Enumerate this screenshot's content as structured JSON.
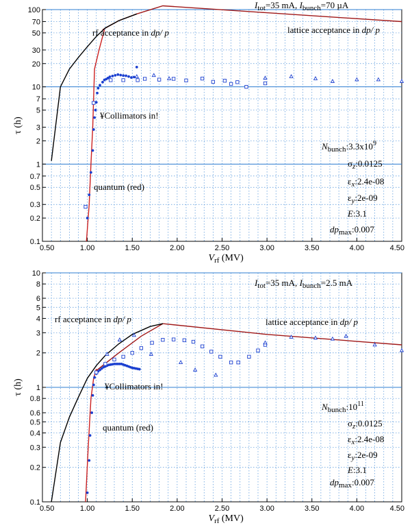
{
  "chart_data": [
    {
      "type": "scatter",
      "xlim": [
        0.5,
        4.5
      ],
      "ylim": [
        0.1,
        100
      ],
      "y_scale": "log",
      "x_ticks": [
        "0.50",
        "1.00",
        "1.50",
        "2.00",
        "2.50",
        "3.00",
        "3.50",
        "4.00",
        "4.50"
      ],
      "y_ticks": [
        {
          "v": 100,
          "l": "100"
        },
        {
          "v": 70,
          "l": "70"
        },
        {
          "v": 50,
          "l": "50"
        },
        {
          "v": 30,
          "l": "30"
        },
        {
          "v": 20,
          "l": "20"
        },
        {
          "v": 10,
          "l": "10"
        },
        {
          "v": 7,
          "l": "7"
        },
        {
          "v": 5,
          "l": "5"
        },
        {
          "v": 3,
          "l": "3"
        },
        {
          "v": 2,
          "l": "2"
        },
        {
          "v": 1,
          "l": "1"
        },
        {
          "v": 0.7,
          "l": "0.7"
        },
        {
          "v": 0.5,
          "l": "0.5"
        },
        {
          "v": 0.3,
          "l": "0.3"
        },
        {
          "v": 0.2,
          "l": "0.2"
        },
        {
          "v": 0.1,
          "l": "0.1"
        }
      ],
      "hlines": [
        100,
        10,
        1
      ],
      "grid": true,
      "ylabel": "τ (h)",
      "xlabel_main": "V",
      "xlabel_sub": "rf",
      "xlabel_unit": " (MV)",
      "title_parts": {
        "a": "I",
        "b": "tot",
        "c": "=35 mA, ",
        "d": "I",
        "e": "bunch",
        "f": "=70 µA"
      },
      "annotations": {
        "rf_acceptance": "rf acceptance in ",
        "rf_acceptance_it": "dp/ p",
        "lattice_acceptance": "lattice acceptance in ",
        "lattice_acceptance_it": "dp/ p",
        "collimators": "¥Collimators in!",
        "quantum": "quantum (red)"
      },
      "params": {
        "n_main": "N",
        "n_sub": "bunch",
        "n_val": ":3.3x10",
        "n_exp": "9",
        "sz_main": "σ",
        "sz_sub": "z",
        "sz_val": ":0.0125",
        "ex_main": "ε",
        "ex_sub": "x",
        "ex_val": ":2.4e-08",
        "ey_main": "ε",
        "ey_sub": "y",
        "ey_val": ":2e-09",
        "e_main": "E",
        "e_val": ":3.1",
        "dp_main": "dp",
        "dp_sub": "max",
        "dp_val": ":0.007"
      },
      "series": [
        {
          "name": "lattice acceptance in dp/p",
          "kind": "line",
          "color": "#a01818",
          "points": [
            [
              1.17,
              55
            ],
            [
              1.35,
              72
            ],
            [
              1.55,
              88
            ],
            [
              1.84,
              112
            ],
            [
              3.0,
              91
            ],
            [
              4.5,
              70
            ]
          ]
        },
        {
          "name": "rf acceptance in dp/p",
          "kind": "line",
          "color": "#000000",
          "points": [
            [
              0.6,
              1.1
            ],
            [
              0.7,
              10
            ],
            [
              0.8,
              17
            ],
            [
              0.9,
              24
            ],
            [
              1.0,
              33
            ],
            [
              1.1,
              45
            ],
            [
              1.2,
              58
            ],
            [
              1.35,
              72
            ],
            [
              1.55,
              88
            ]
          ]
        },
        {
          "name": "quantum (red)",
          "kind": "line",
          "color": "#cc2020",
          "points": [
            [
              0.99,
              0.1
            ],
            [
              1.02,
              0.3
            ],
            [
              1.04,
              1
            ],
            [
              1.06,
              3
            ],
            [
              1.08,
              17
            ],
            [
              1.13,
              30
            ],
            [
              1.19,
              55
            ]
          ]
        },
        {
          "name": "filled circles",
          "kind": "dot",
          "color": "#1a3fd0",
          "points": [
            [
              1.0,
              0.2
            ],
            [
              1.02,
              0.4
            ],
            [
              1.04,
              0.78
            ],
            [
              1.06,
              1.5
            ],
            [
              1.07,
              2.8
            ],
            [
              1.08,
              4.0
            ],
            [
              1.09,
              5.0
            ],
            [
              1.1,
              6.3
            ],
            [
              1.11,
              8.3
            ],
            [
              1.12,
              9.6
            ],
            [
              1.14,
              10.5
            ],
            [
              1.17,
              11.5
            ],
            [
              1.19,
              12.3
            ],
            [
              1.21,
              12.6
            ],
            [
              1.23,
              13.0
            ],
            [
              1.25,
              13.5
            ],
            [
              1.28,
              13.8
            ],
            [
              1.31,
              14.1
            ],
            [
              1.34,
              14.4
            ],
            [
              1.37,
              14.2
            ],
            [
              1.4,
              14.0
            ],
            [
              1.43,
              13.9
            ],
            [
              1.46,
              13.6
            ],
            [
              1.49,
              13.2
            ],
            [
              1.52,
              13.4
            ],
            [
              1.55,
              18
            ]
          ]
        },
        {
          "name": "open squares",
          "kind": "square",
          "color": "#1a3fd0",
          "points": [
            [
              0.98,
              0.28
            ],
            [
              1.07,
              6.2
            ],
            [
              1.26,
              12.2
            ],
            [
              1.4,
              12.2
            ],
            [
              1.56,
              12.2
            ],
            [
              1.64,
              12.7
            ],
            [
              1.8,
              12.4
            ],
            [
              1.96,
              12.7
            ],
            [
              2.1,
              12.1
            ],
            [
              2.28,
              12.8
            ],
            [
              2.4,
              11.6
            ],
            [
              2.53,
              12.0
            ],
            [
              2.6,
              10.9
            ],
            [
              2.67,
              11.5
            ],
            [
              2.77,
              10.0
            ],
            [
              2.98,
              11.1
            ]
          ]
        },
        {
          "name": "open triangles",
          "kind": "triangle",
          "color": "#1a3fd0",
          "points": [
            [
              1.55,
              13.6
            ],
            [
              1.74,
              14.1
            ],
            [
              1.91,
              12.8
            ],
            [
              2.98,
              13.0
            ],
            [
              3.27,
              13.6
            ],
            [
              3.54,
              12.8
            ],
            [
              3.73,
              11.8
            ],
            [
              4.0,
              12.4
            ],
            [
              4.24,
              12.4
            ],
            [
              4.5,
              11.8
            ]
          ]
        }
      ]
    },
    {
      "type": "scatter",
      "xlim": [
        0.5,
        4.5
      ],
      "ylim": [
        0.1,
        10
      ],
      "y_scale": "log",
      "x_ticks": [
        "0.50",
        "1.00",
        "1.50",
        "2.00",
        "2.50",
        "3.00",
        "3.50",
        "4.00",
        "4.50"
      ],
      "y_ticks": [
        {
          "v": 10,
          "l": "10"
        },
        {
          "v": 8,
          "l": "8"
        },
        {
          "v": 6,
          "l": "6"
        },
        {
          "v": 5,
          "l": "5"
        },
        {
          "v": 4,
          "l": "4"
        },
        {
          "v": 3,
          "l": "3"
        },
        {
          "v": 2,
          "l": "2"
        },
        {
          "v": 1,
          "l": "1"
        },
        {
          "v": 0.8,
          "l": "0.8"
        },
        {
          "v": 0.6,
          "l": "0.6"
        },
        {
          "v": 0.5,
          "l": "0.5"
        },
        {
          "v": 0.4,
          "l": "0.4"
        },
        {
          "v": 0.3,
          "l": "0.3"
        },
        {
          "v": 0.2,
          "l": "0.2"
        },
        {
          "v": 0.1,
          "l": "0.1"
        }
      ],
      "hlines": [
        10,
        1
      ],
      "grid": true,
      "ylabel": "τ (h)",
      "xlabel_main": "V",
      "xlabel_sub": "rf",
      "xlabel_unit": " (MV)",
      "title_parts": {
        "a": "I",
        "b": "tot",
        "c": "=35 mA, ",
        "d": "I",
        "e": "bunch",
        "f": "=2.5 mA"
      },
      "annotations": {
        "rf_acceptance": "rf acceptance in ",
        "rf_acceptance_it": "dp/ p",
        "lattice_acceptance": "lattice acceptance in ",
        "lattice_acceptance_it": "dp/ p",
        "collimators": "¥Collimators in!",
        "quantum": "quantum (red)"
      },
      "params": {
        "n_main": "N",
        "n_sub": "bunch",
        "n_val": ":10",
        "n_exp": "11",
        "sz_main": "σ",
        "sz_sub": "z",
        "sz_val": ":0.0125",
        "ex_main": "ε",
        "ex_sub": "x",
        "ex_val": ":2.4e-08",
        "ey_main": "ε",
        "ey_sub": "y",
        "ey_val": ":2e-09",
        "e_main": "E",
        "e_val": ":3.1",
        "dp_main": "dp",
        "dp_sub": "max",
        "dp_val": ":0.007"
      },
      "series": [
        {
          "name": "lattice acceptance in dp/p",
          "kind": "line",
          "color": "#a01818",
          "points": [
            [
              1.1,
              1.4
            ],
            [
              1.35,
              2.0
            ],
            [
              1.6,
              2.8
            ],
            [
              1.84,
              3.6
            ],
            [
              3.0,
              2.9
            ],
            [
              4.5,
              2.35
            ]
          ]
        },
        {
          "name": "rf acceptance in dp/p",
          "kind": "line",
          "color": "#000000",
          "points": [
            [
              0.6,
              0.1
            ],
            [
              0.7,
              0.33
            ],
            [
              0.8,
              0.55
            ],
            [
              0.9,
              0.82
            ],
            [
              1.0,
              1.2
            ],
            [
              1.1,
              1.55
            ],
            [
              1.2,
              1.9
            ],
            [
              1.35,
              2.4
            ],
            [
              1.5,
              2.9
            ],
            [
              1.7,
              3.4
            ],
            [
              1.84,
              3.6
            ]
          ]
        },
        {
          "name": "quantum (red)",
          "kind": "line",
          "color": "#cc2020",
          "points": [
            [
              0.98,
              0.1
            ],
            [
              1.01,
              0.3
            ],
            [
              1.04,
              0.8
            ],
            [
              1.07,
              1.2
            ],
            [
              1.1,
              1.45
            ]
          ]
        },
        {
          "name": "filled circles",
          "kind": "dot",
          "color": "#1a3fd0",
          "points": [
            [
              1.0,
              0.12
            ],
            [
              1.02,
              0.23
            ],
            [
              1.03,
              0.38
            ],
            [
              1.05,
              0.6
            ],
            [
              1.06,
              0.85
            ],
            [
              1.07,
              1.05
            ],
            [
              1.08,
              1.22
            ],
            [
              1.1,
              1.32
            ],
            [
              1.12,
              1.38
            ],
            [
              1.14,
              1.42
            ],
            [
              1.16,
              1.46
            ],
            [
              1.18,
              1.5
            ],
            [
              1.2,
              1.52
            ],
            [
              1.22,
              1.55
            ],
            [
              1.24,
              1.57
            ],
            [
              1.26,
              1.58
            ],
            [
              1.28,
              1.59
            ],
            [
              1.3,
              1.6
            ],
            [
              1.32,
              1.6
            ],
            [
              1.34,
              1.6
            ],
            [
              1.36,
              1.6
            ],
            [
              1.38,
              1.6
            ],
            [
              1.4,
              1.58
            ],
            [
              1.42,
              1.56
            ],
            [
              1.44,
              1.54
            ],
            [
              1.46,
              1.52
            ],
            [
              1.48,
              1.5
            ],
            [
              1.5,
              1.48
            ],
            [
              1.52,
              1.47
            ],
            [
              1.54,
              1.46
            ],
            [
              1.56,
              1.45
            ],
            [
              1.58,
              1.44
            ]
          ]
        },
        {
          "name": "open squares",
          "kind": "square",
          "color": "#1a3fd0",
          "points": [
            [
              1.1,
              1.35
            ],
            [
              1.2,
              1.6
            ],
            [
              1.3,
              1.75
            ],
            [
              1.4,
              1.85
            ],
            [
              1.5,
              2.0
            ],
            [
              1.6,
              2.2
            ],
            [
              1.72,
              2.45
            ],
            [
              1.84,
              2.6
            ],
            [
              1.96,
              2.62
            ],
            [
              2.08,
              2.58
            ],
            [
              2.18,
              2.5
            ],
            [
              2.28,
              2.28
            ],
            [
              2.38,
              2.05
            ],
            [
              2.48,
              1.85
            ],
            [
              2.6,
              1.65
            ],
            [
              2.68,
              1.65
            ],
            [
              2.8,
              1.85
            ],
            [
              2.9,
              2.1
            ],
            [
              2.98,
              2.35
            ]
          ]
        },
        {
          "name": "open triangles",
          "kind": "triangle",
          "color": "#1a3fd0",
          "points": [
            [
              1.22,
              1.95
            ],
            [
              1.36,
              2.6
            ],
            [
              1.52,
              2.85
            ],
            [
              1.71,
              1.95
            ],
            [
              2.04,
              1.65
            ],
            [
              2.2,
              1.42
            ],
            [
              2.43,
              1.28
            ],
            [
              2.98,
              2.45
            ],
            [
              3.27,
              2.75
            ],
            [
              3.54,
              2.7
            ],
            [
              3.73,
              2.65
            ],
            [
              3.88,
              2.8
            ],
            [
              4.2,
              2.35
            ],
            [
              4.5,
              2.1
            ]
          ]
        }
      ]
    }
  ]
}
